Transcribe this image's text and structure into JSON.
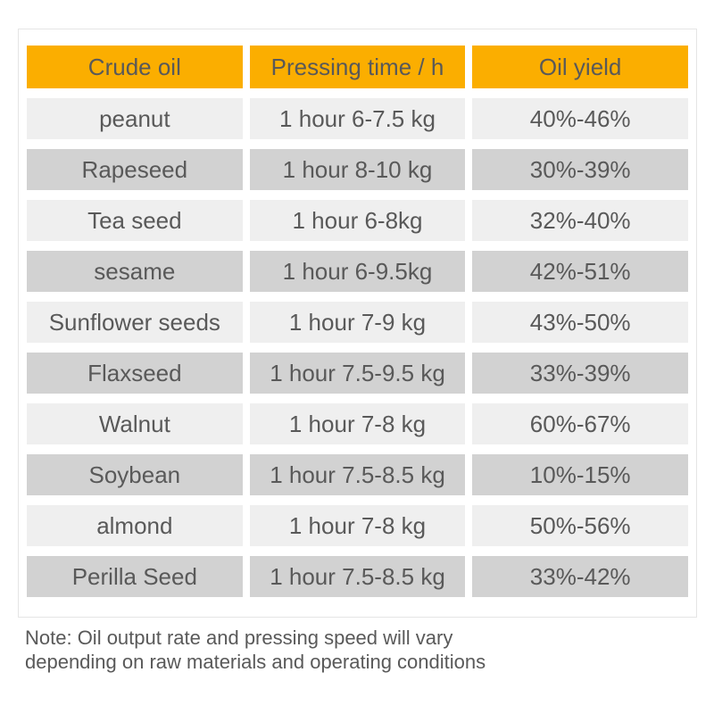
{
  "chart_data": {
    "type": "table",
    "columns": [
      "Crude oil",
      "Pressing time / h",
      "Oil yield"
    ],
    "rows": [
      [
        "peanut",
        "1 hour 6-7.5 kg",
        "40%-46%"
      ],
      [
        "Rapeseed",
        "1 hour 8-10 kg",
        "30%-39%"
      ],
      [
        "Tea seed",
        "1 hour 6-8kg",
        "32%-40%"
      ],
      [
        "sesame",
        "1 hour 6-9.5kg",
        "42%-51%"
      ],
      [
        "Sunflower seeds",
        "1 hour 7-9 kg",
        "43%-50%"
      ],
      [
        "Flaxseed",
        "1 hour 7.5-9.5 kg",
        "33%-39%"
      ],
      [
        "Walnut",
        "1 hour 7-8 kg",
        "60%-67%"
      ],
      [
        "Soybean",
        "1 hour 7.5-8.5 kg",
        "10%-15%"
      ],
      [
        "almond",
        "1 hour 7-8 kg",
        "50%-56%"
      ],
      [
        "Perilla Seed",
        "1 hour 7.5-8.5 kg",
        "33%-42%"
      ]
    ],
    "layout_hints": {
      "header_style": "orange filled cells",
      "row_striping": "alternating light/dark gray",
      "cell_gaps": "white gaps between all cells"
    }
  },
  "note": {
    "line1": "Note: Oil output rate and pressing speed will vary",
    "line2": "depending on raw materials and operating conditions"
  },
  "colors": {
    "header_bg": "#FBAE00",
    "row_light": "#EFEFEF",
    "row_dark": "#D2D2D2",
    "text": "#595959",
    "border": "#E5E5E5",
    "page_bg": "#FFFFFF"
  }
}
